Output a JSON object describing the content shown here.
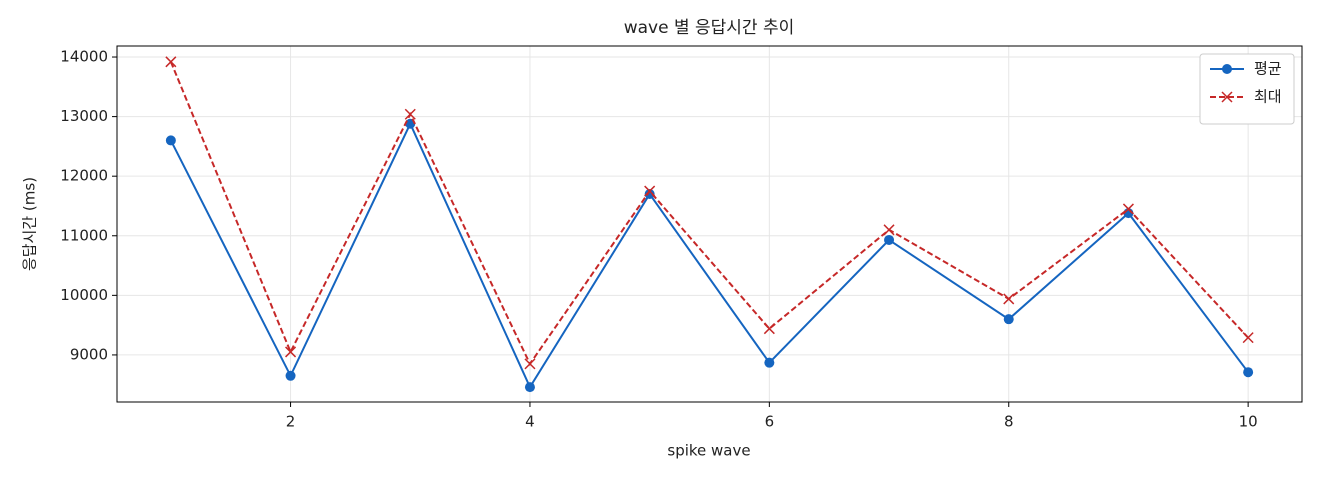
{
  "chart_data": {
    "type": "line",
    "title": "wave 별 응답시간 추이",
    "x_label": "spike wave",
    "y_label": "응답시간 (ms)",
    "x": [
      1,
      2,
      3,
      4,
      5,
      6,
      7,
      8,
      9,
      10
    ],
    "series": [
      {
        "name": "평균",
        "color": "#1565c0",
        "values": [
          12600,
          8650,
          12880,
          8460,
          11700,
          8870,
          10930,
          9600,
          11380,
          8710
        ]
      },
      {
        "name": "최대",
        "color": "#c62828",
        "values": [
          13920,
          9050,
          13040,
          8850,
          11750,
          9440,
          11100,
          9940,
          11450,
          9290
        ]
      }
    ],
    "xlim": [
      0.55,
      10.45
    ],
    "xticks": [
      2,
      4,
      6,
      8,
      10
    ],
    "ylim": [
      8210,
      14185
    ],
    "yticks": [
      9000,
      10000,
      11000,
      12000,
      13000,
      14000
    ],
    "grid": true,
    "legend": "upper right"
  }
}
